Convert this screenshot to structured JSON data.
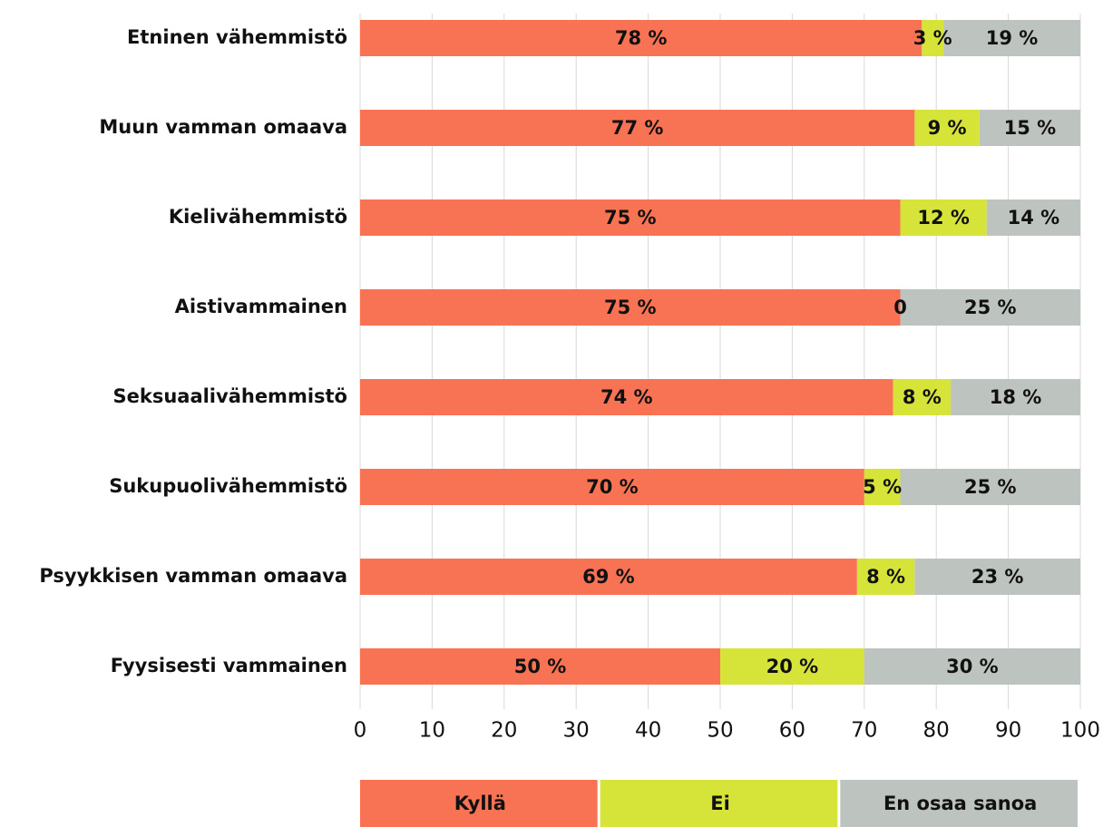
{
  "chart_data": {
    "type": "stacked_barh",
    "categories": [
      "Etninen vähemmistö",
      "Muun vamman omaava",
      "Kielivähemmistö",
      "Aistivammainen",
      "Seksuaalivähemmistö",
      "Sukupuolivähemmistö",
      "Psyykkisen vamman omaava",
      "Fyysisesti vammainen"
    ],
    "series": [
      {
        "name": "Kyllä",
        "color": "#f87254",
        "values": [
          78,
          77,
          75,
          75,
          74,
          70,
          69,
          50
        ],
        "value_labels": [
          "78 %",
          "77 %",
          "75 %",
          "75 %",
          "74 %",
          "70 %",
          "69 %",
          "50 %"
        ]
      },
      {
        "name": "Ei",
        "color": "#d6e43a",
        "values": [
          3,
          9,
          12,
          0,
          8,
          5,
          8,
          20
        ],
        "value_labels": [
          "3 %",
          "9 %",
          "12 %",
          "0",
          "8 %",
          "5 %",
          "8 %",
          "20 %"
        ]
      },
      {
        "name": "En osaa sanoa",
        "color": "#bdc3bf",
        "values": [
          19,
          15,
          14,
          25,
          18,
          25,
          23,
          30
        ],
        "value_labels": [
          "19 %",
          "15 %",
          "14 %",
          "25 %",
          "18 %",
          "25 %",
          "23 %",
          "30 %"
        ]
      }
    ],
    "xlim": [
      0,
      100
    ],
    "xticks": [
      0,
      10,
      20,
      30,
      40,
      50,
      60,
      70,
      80,
      90,
      100
    ],
    "grid": true,
    "legend": "bottom"
  }
}
